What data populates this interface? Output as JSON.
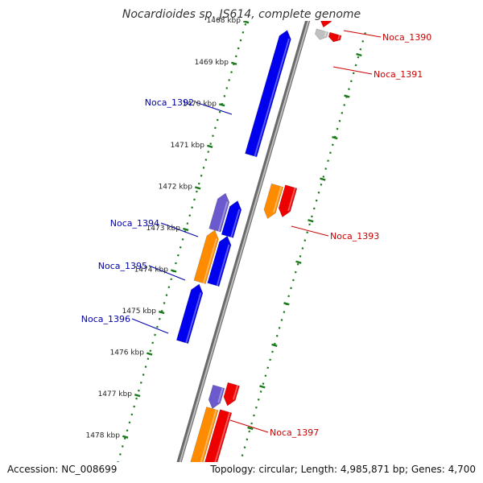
{
  "title": "Nocardioides sp. JS614, complete genome",
  "footer": {
    "accession": "Accession: NC_008699",
    "topology": "Topology: circular; Length: 4,985,871 bp; Genes: 4,700"
  },
  "colors": {
    "backbone": "#8c8c8c",
    "tick": "#1a7a1a",
    "red": "#ee0000",
    "blue": "#0000ee",
    "orange": "#ff8c00",
    "purple": "#6a5acd",
    "grey": "#c0c0c0",
    "label_forward": "#cc0000",
    "label_reverse": "#0000aa"
  },
  "scale": {
    "start_kbp": 1467.3,
    "end_kbp": 1478.3
  },
  "ticks": [
    {
      "kbp": 1468,
      "label": "1468 kbp"
    },
    {
      "kbp": 1469,
      "label": "1469 kbp"
    },
    {
      "kbp": 1470,
      "label": "1470 kbp"
    },
    {
      "kbp": 1471,
      "label": "1471 kbp"
    },
    {
      "kbp": 1472,
      "label": "1472 kbp"
    },
    {
      "kbp": 1473,
      "label": "1473 kbp"
    },
    {
      "kbp": 1474,
      "label": "1474 kbp"
    },
    {
      "kbp": 1475,
      "label": "1475 kbp"
    },
    {
      "kbp": 1476,
      "label": "1476 kbp"
    },
    {
      "kbp": 1477,
      "label": "1477 kbp"
    },
    {
      "kbp": 1478,
      "label": "1478 kbp"
    }
  ],
  "genes": [
    {
      "name": "Noca_1390",
      "strand": 1,
      "lane": 1,
      "start_kbp": 1467.0,
      "end_kbp": 1467.62,
      "color": "red",
      "label": "Noca_1390"
    },
    {
      "name": "noca-1390-rna",
      "strand": 1,
      "lane": 2,
      "start_kbp": 1467.69,
      "end_kbp": 1467.88,
      "color": "red",
      "label": ""
    },
    {
      "name": "Noca_1391",
      "strand": 1,
      "lane": 1,
      "start_kbp": 1467.7,
      "end_kbp": 1467.92,
      "color": "grey",
      "label": "Noca_1391"
    },
    {
      "name": "Noca_1392",
      "strand": -1,
      "lane": 1,
      "start_kbp": 1467.92,
      "end_kbp": 1470.93,
      "color": "blue",
      "label": "Noca_1392"
    },
    {
      "name": "Noca_1393a",
      "strand": 1,
      "lane": 2,
      "start_kbp": 1471.37,
      "end_kbp": 1472.1,
      "color": "red",
      "label": ""
    },
    {
      "name": "Noca_1393",
      "strand": 1,
      "lane": 1,
      "start_kbp": 1471.43,
      "end_kbp": 1472.23,
      "color": "orange",
      "label": "Noca_1393"
    },
    {
      "name": "Noca_1394",
      "strand": -1,
      "lane": 2,
      "start_kbp": 1471.94,
      "end_kbp": 1472.83,
      "color": "purple",
      "label": "Noca_1394"
    },
    {
      "name": "noca-1394-b",
      "strand": -1,
      "lane": 1,
      "start_kbp": 1472.03,
      "end_kbp": 1472.88,
      "color": "blue",
      "label": ""
    },
    {
      "name": "Noca_1395",
      "strand": -1,
      "lane": 2,
      "start_kbp": 1472.83,
      "end_kbp": 1474.08,
      "color": "orange",
      "label": "Noca_1395"
    },
    {
      "name": "noca-1395-b",
      "strand": -1,
      "lane": 1,
      "start_kbp": 1472.88,
      "end_kbp": 1474.05,
      "color": "blue",
      "label": ""
    },
    {
      "name": "Noca_1396",
      "strand": -1,
      "lane": 2,
      "start_kbp": 1474.13,
      "end_kbp": 1475.52,
      "color": "blue",
      "label": "Noca_1396"
    },
    {
      "name": "noca-1397-a",
      "strand": 1,
      "lane": 2,
      "start_kbp": 1476.13,
      "end_kbp": 1476.65,
      "color": "red",
      "label": ""
    },
    {
      "name": "Noca_1397",
      "strand": 1,
      "lane": 1,
      "start_kbp": 1476.28,
      "end_kbp": 1476.81,
      "color": "purple",
      "label": "Noca_1397"
    },
    {
      "name": "noca-1398-a",
      "strand": 1,
      "lane": 2,
      "start_kbp": 1476.78,
      "end_kbp": 1478.4,
      "color": "red",
      "label": ""
    },
    {
      "name": "noca-1398-b",
      "strand": 1,
      "lane": 1,
      "start_kbp": 1476.81,
      "end_kbp": 1478.4,
      "color": "orange",
      "label": ""
    }
  ]
}
